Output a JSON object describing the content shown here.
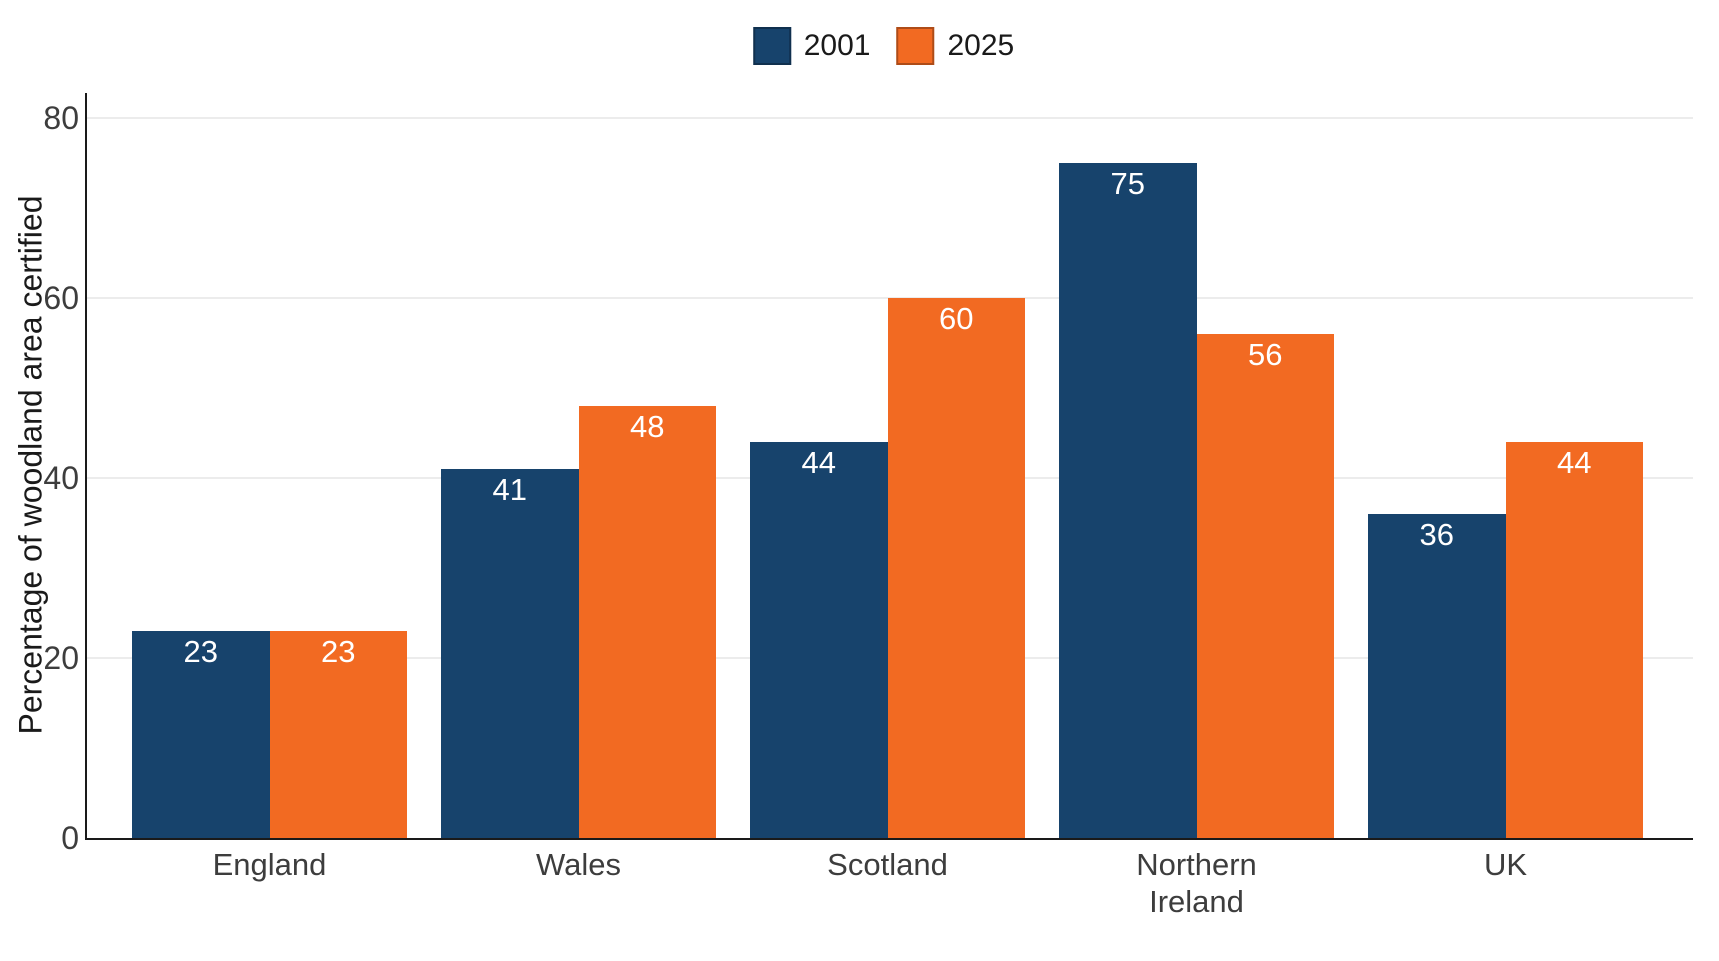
{
  "chart_data": {
    "type": "bar",
    "title": "",
    "categories": [
      "England",
      "Wales",
      "Scotland",
      "Northern\nIreland",
      "UK"
    ],
    "series": [
      {
        "name": "2001",
        "color": "#17436C",
        "values": [
          23,
          41,
          44,
          75,
          36
        ]
      },
      {
        "name": "2025",
        "color": "#F26A22",
        "values": [
          23,
          48,
          60,
          56,
          44
        ]
      }
    ],
    "xlabel": "",
    "ylabel": "Percentage of woodland area certified",
    "yticks": [
      0,
      20,
      40,
      60,
      80
    ],
    "ylim": [
      0,
      82.8
    ],
    "grid": "horizontal",
    "gridline_color": "#ECECEC",
    "axis_color": "#1A1A1A",
    "tick_label_color": "#3D3D3D",
    "value_label_color": "#FFFFFF",
    "value_labels_position": "inside-top",
    "legend_position": "top-center",
    "background": "#FFFFFF"
  }
}
